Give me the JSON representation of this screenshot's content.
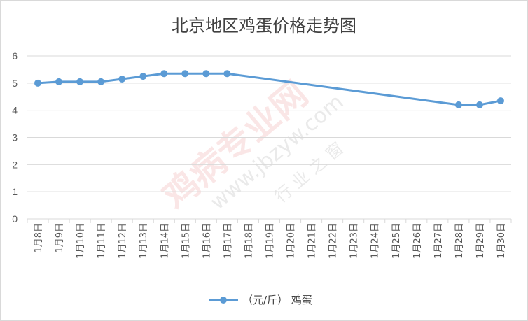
{
  "chart_data": {
    "type": "line",
    "title": "北京地区鸡蛋价格走势图",
    "categories": [
      "1月8日",
      "1月9日",
      "1月10日",
      "1月11日",
      "1月12日",
      "1月13日",
      "1月14日",
      "1月15日",
      "1月16日",
      "1月17日",
      "1月18日",
      "1月19日",
      "1月20日",
      "1月21日",
      "1月22日",
      "1月23日",
      "1月24日",
      "1月25日",
      "1月26日",
      "1月27日",
      "1月28日",
      "1月29日",
      "1月30日"
    ],
    "series": [
      {
        "name": "（元/斤） 鸡蛋",
        "values": [
          5.0,
          5.05,
          5.05,
          5.05,
          5.15,
          5.25,
          5.35,
          5.35,
          5.35,
          5.35,
          null,
          null,
          null,
          null,
          null,
          null,
          null,
          null,
          null,
          null,
          4.2,
          4.2,
          4.35
        ]
      }
    ],
    "ylim": [
      0,
      6
    ],
    "yticks": [
      "0",
      "1",
      "2",
      "3",
      "4",
      "5",
      "6"
    ],
    "grid": true,
    "legend": "bottom",
    "line_color": "#5b9bd5"
  },
  "watermark": {
    "main": "鸡病专业网",
    "url": "www.jbzyw.com",
    "script": "行 业 之 窗"
  }
}
